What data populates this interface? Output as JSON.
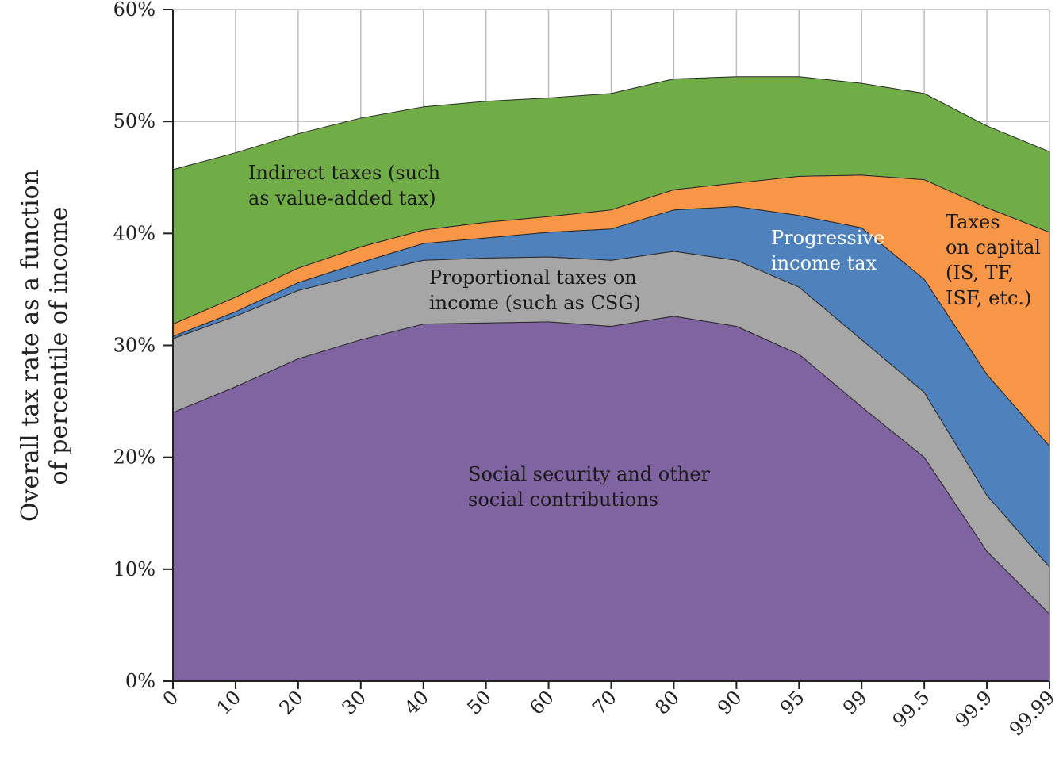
{
  "chart_data": {
    "type": "area",
    "stacked": true,
    "ylabel_lines": [
      "Overall tax rate as a function",
      "of percentile of income"
    ],
    "xlabel": "",
    "ylim": [
      0,
      60
    ],
    "yticks": [
      0,
      10,
      20,
      30,
      40,
      50,
      60
    ],
    "ytick_labels": [
      "0%",
      "10%",
      "20%",
      "30%",
      "40%",
      "50%",
      "60%"
    ],
    "categories": [
      "0",
      "10",
      "20",
      "30",
      "40",
      "50",
      "60",
      "70",
      "80",
      "90",
      "95",
      "99",
      "99.5",
      "99.9",
      "99.99"
    ],
    "grid": true,
    "legend": "none",
    "series": [
      {
        "key": "social",
        "color": "#8064a2",
        "values": [
          24.0,
          26.3,
          28.8,
          30.5,
          31.9,
          32.0,
          32.1,
          31.7,
          32.6,
          31.7,
          29.2,
          24.5,
          20.0,
          11.6,
          6.0
        ]
      },
      {
        "key": "proportional",
        "color": "#a6a6a6",
        "values": [
          6.6,
          6.3,
          6.1,
          5.8,
          5.7,
          5.8,
          5.8,
          5.9,
          5.8,
          5.9,
          6.0,
          6.0,
          5.8,
          5.0,
          4.2
        ]
      },
      {
        "key": "progressive",
        "color": "#4f81bd",
        "values": [
          0.2,
          0.4,
          0.7,
          1.1,
          1.5,
          1.8,
          2.2,
          2.8,
          3.7,
          4.8,
          6.4,
          10.0,
          10.1,
          10.8,
          10.8
        ]
      },
      {
        "key": "capital",
        "color": "#f79646",
        "values": [
          1.1,
          1.3,
          1.3,
          1.4,
          1.2,
          1.4,
          1.4,
          1.7,
          1.8,
          2.1,
          3.5,
          4.7,
          8.9,
          14.9,
          19.1
        ]
      },
      {
        "key": "indirect",
        "color": "#70ad47",
        "values": [
          13.8,
          12.9,
          12.0,
          11.5,
          11.0,
          10.8,
          10.6,
          10.4,
          9.9,
          9.5,
          8.9,
          8.2,
          7.7,
          7.3,
          7.2
        ]
      }
    ],
    "annotations": [
      {
        "key": "indirect",
        "lines": [
          "Indirect taxes (such",
          "as value-added tax)"
        ],
        "color": "#1a1a1a"
      },
      {
        "key": "proportional",
        "lines": [
          "Proportional taxes on",
          "income (such as CSG)"
        ],
        "color": "#1a1a1a"
      },
      {
        "key": "progressive",
        "lines": [
          "Progressive",
          "income tax"
        ],
        "color": "#ffffff"
      },
      {
        "key": "capital",
        "lines": [
          "Taxes",
          "on capital",
          "(IS, TF,",
          "ISF, etc.)"
        ],
        "color": "#1a1a1a"
      },
      {
        "key": "social",
        "lines": [
          "Social security and other",
          "social contributions"
        ],
        "color": "#1a1a1a"
      }
    ]
  }
}
